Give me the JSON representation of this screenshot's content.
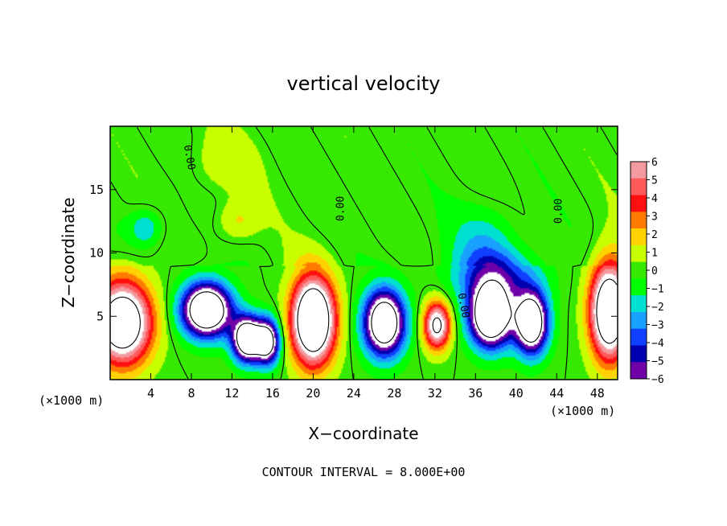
{
  "chart_data": {
    "type": "heatmap",
    "title": "vertical velocity",
    "xlabel": "X−coordinate",
    "ylabel": "Z−coordinate",
    "x_unit": "(×1000 m)",
    "y_unit": "(×1000 m)",
    "xlim": [
      0,
      50
    ],
    "ylim": [
      0,
      20
    ],
    "x_ticks": [
      4,
      8,
      12,
      16,
      20,
      24,
      28,
      32,
      36,
      40,
      44,
      48
    ],
    "y_ticks": [
      5,
      10,
      15
    ],
    "zero_contour_label": "0.00",
    "contour_interval_text": "CONTOUR INTERVAL = 8.000E+00",
    "colorbar": {
      "levels": [
        6,
        5,
        4,
        3,
        2,
        1,
        0,
        -1,
        -2,
        -3,
        -4,
        -5,
        -6
      ],
      "labels": [
        "6",
        "5",
        "4",
        "3",
        "2",
        "1",
        "0",
        "−1",
        "−2",
        "−3",
        "−4",
        "−5",
        "−6"
      ],
      "colors": [
        "#f29aa0",
        "#ff5a5a",
        "#ff1010",
        "#ff7a00",
        "#ffd200",
        "#c8ff00",
        "#37e800",
        "#00ff00",
        "#00e0d0",
        "#1aa0ff",
        "#1040ff",
        "#0000b0",
        "#7000a8"
      ]
    },
    "updrafts": [
      {
        "x": 1.2,
        "z": 4.5,
        "rx": 3.5,
        "rz": 4.0,
        "peak": 12
      },
      {
        "x": 20.0,
        "z": 4.7,
        "rx": 2.6,
        "rz": 4.2,
        "peak": 14
      },
      {
        "x": 32.2,
        "z": 4.3,
        "rx": 1.6,
        "rz": 2.3,
        "peak": 9
      },
      {
        "x": 49.2,
        "z": 5.4,
        "rx": 2.3,
        "rz": 4.6,
        "peak": 13
      },
      {
        "x": 11.0,
        "z": 17.0,
        "rx": 4.0,
        "rz": 3.0,
        "peak": 1.2
      },
      {
        "x": 12.5,
        "z": 12.5,
        "rx": 2.5,
        "rz": 2.0,
        "peak": 1.8
      }
    ],
    "downdrafts": [
      {
        "x": 9.5,
        "z": 5.5,
        "rx": 3.0,
        "rz": 2.6,
        "peak": -13
      },
      {
        "x": 13.5,
        "z": 3.2,
        "rx": 1.8,
        "rz": 2.2,
        "peak": -12
      },
      {
        "x": 15.5,
        "z": 3.0,
        "rx": 1.5,
        "rz": 2.2,
        "peak": -10
      },
      {
        "x": 27.0,
        "z": 4.5,
        "rx": 2.5,
        "rz": 3.2,
        "peak": -12
      },
      {
        "x": 37.5,
        "z": 5.0,
        "rx": 2.6,
        "rz": 3.0,
        "peak": -13
      },
      {
        "x": 41.5,
        "z": 4.5,
        "rx": 2.0,
        "rz": 3.0,
        "peak": -12
      },
      {
        "x": 38.0,
        "z": 8.0,
        "rx": 5.0,
        "rz": 2.8,
        "peak": -4.5
      },
      {
        "x": 37.0,
        "z": 11.0,
        "rx": 4.0,
        "rz": 3.5,
        "peak": -2.0
      },
      {
        "x": 3.5,
        "z": 12.0,
        "rx": 2.0,
        "rz": 1.8,
        "peak": -2.5
      }
    ]
  }
}
